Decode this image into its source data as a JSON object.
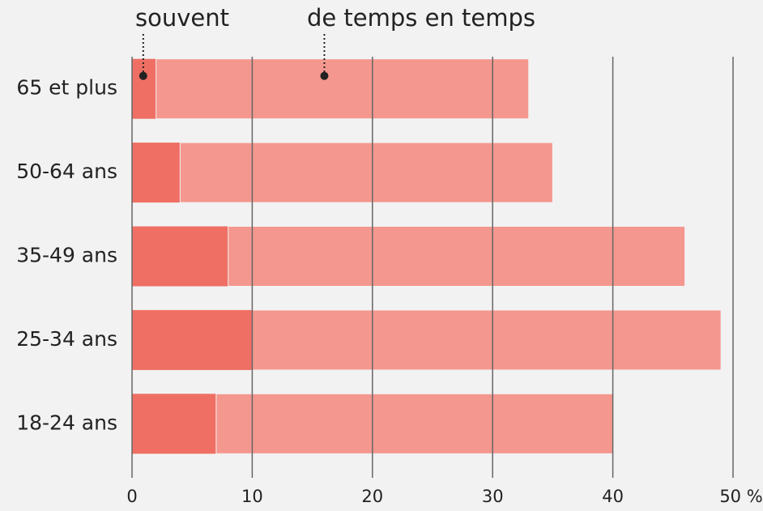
{
  "chart_data": {
    "type": "stacked-barh",
    "categories": [
      "65 et plus",
      "50-64 ans",
      "35-49 ans",
      "25-34 ans",
      "18-24 ans"
    ],
    "series": [
      {
        "name": "souvent",
        "color": "#ef6f64",
        "values": [
          2,
          4,
          8,
          10,
          7
        ]
      },
      {
        "name": "de temps en temps",
        "color": "#f4978e",
        "values": [
          31,
          31,
          38,
          39,
          33
        ]
      }
    ],
    "xlim": [
      0,
      50
    ],
    "xticks": [
      0,
      10,
      20,
      30,
      40,
      {
        "value": 50,
        "label": "50 %"
      }
    ],
    "grid": true
  }
}
